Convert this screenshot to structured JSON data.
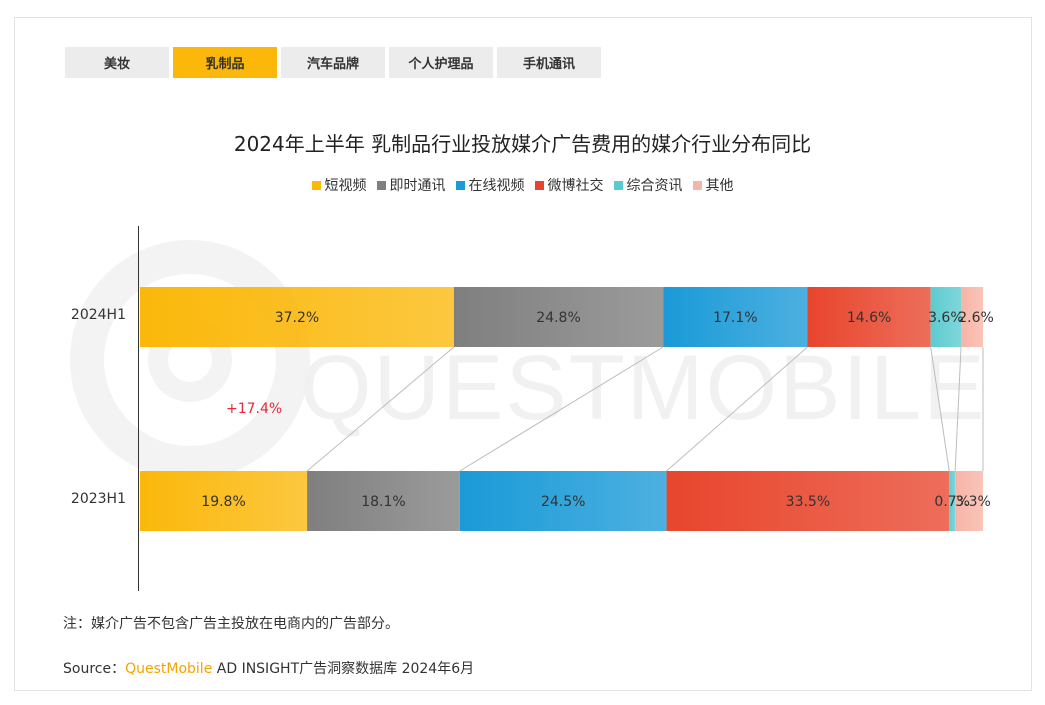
{
  "tabs": [
    {
      "label": "美妆",
      "active": false
    },
    {
      "label": "乳制品",
      "active": true
    },
    {
      "label": "汽车品牌",
      "active": false
    },
    {
      "label": "个人护理品",
      "active": false
    },
    {
      "label": "手机通讯",
      "active": false
    }
  ],
  "watermark": "QUESTMOBILE",
  "change_label": "+17.4%",
  "note": "注：媒介广告不包含广告主投放在电商内的广告部分。",
  "source": {
    "prefix": "Source：",
    "brand": "QuestMobile",
    "text": " AD INSIGHT广告洞察数据库 2024年6月"
  },
  "chart_data": {
    "type": "bar",
    "orientation": "horizontal",
    "stacked": true,
    "percent_stacked": true,
    "title": "2024年上半年 乳制品行业投放媒介广告费用的媒介行业分布同比",
    "categories": [
      "2024H1",
      "2023H1"
    ],
    "series": [
      {
        "name": "短视频",
        "color": "#fbb80a",
        "values": [
          37.2,
          19.8
        ],
        "labels": [
          "37.2%",
          "19.8%"
        ]
      },
      {
        "name": "即时通讯",
        "color": "#7f7f7f",
        "values": [
          24.8,
          18.1
        ],
        "labels": [
          "24.8%",
          "18.1%"
        ]
      },
      {
        "name": "在线视频",
        "color": "#1a9ad7",
        "values": [
          17.1,
          24.5
        ],
        "labels": [
          "17.1%",
          "24.5%"
        ]
      },
      {
        "name": "微博社交",
        "color": "#e8452c",
        "values": [
          14.6,
          33.5
        ],
        "labels": [
          "14.6%",
          "33.5%"
        ]
      },
      {
        "name": "综合资讯",
        "color": "#5ccbd0",
        "values": [
          3.6,
          0.7
        ],
        "labels": [
          "3.6%",
          "0.7%"
        ]
      },
      {
        "name": "其他",
        "color": "#f8b4a6",
        "values": [
          2.6,
          3.3
        ],
        "labels": [
          "2.6%",
          "3.3%"
        ]
      }
    ],
    "legend": "top-center",
    "connectors": true
  }
}
